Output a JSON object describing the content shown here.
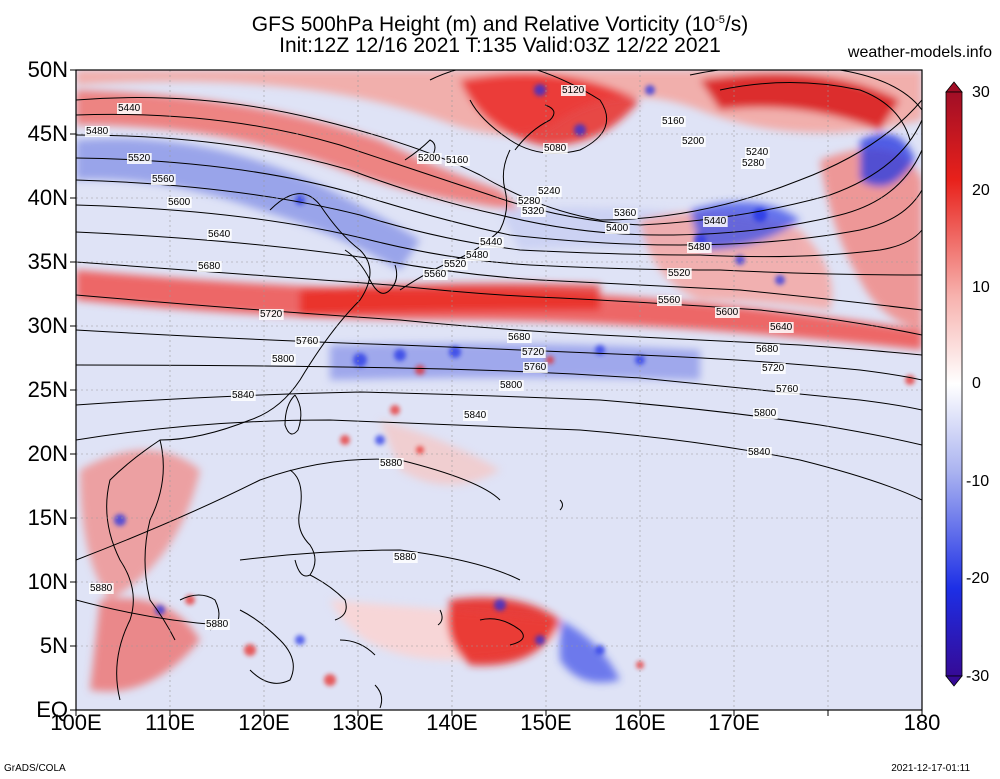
{
  "title_line1_prefix": "GFS 500hPa Height (m) and Relative Vorticity (10",
  "title_line1_exp": "-5",
  "title_line1_suffix": "/s)",
  "title_line2": "Init:12Z 12/16 2021 T:135 Valid:03Z 12/22 2021",
  "site": "weather-models.info",
  "lat_labels": [
    "50N",
    "45N",
    "40N",
    "35N",
    "30N",
    "25N",
    "20N",
    "15N",
    "10N",
    "5N",
    "EQ"
  ],
  "lon_labels": [
    "100E",
    "110E",
    "120E",
    "130E",
    "140E",
    "150E",
    "160E",
    "170E",
    "180"
  ],
  "colorbar": {
    "labels": [
      "30",
      "20",
      "10",
      "0",
      "-10",
      "-20",
      "-30"
    ],
    "colors": [
      "#b0102a",
      "#e8211b",
      "#f4a09c",
      "#ffffff",
      "#9aa6ee",
      "#1d2fe6",
      "#3a0a9c"
    ]
  },
  "contour_labels": [
    {
      "text": "5120"
    },
    {
      "text": "5160"
    },
    {
      "text": "5200"
    },
    {
      "text": "5240"
    },
    {
      "text": "5280"
    },
    {
      "text": "5320"
    },
    {
      "text": "5360"
    },
    {
      "text": "5400"
    },
    {
      "text": "5440"
    },
    {
      "text": "5480"
    },
    {
      "text": "5520"
    },
    {
      "text": "5560"
    },
    {
      "text": "5600"
    },
    {
      "text": "5640"
    },
    {
      "text": "5680"
    },
    {
      "text": "5720"
    },
    {
      "text": "5760"
    },
    {
      "text": "5800"
    },
    {
      "text": "5840"
    },
    {
      "text": "5880"
    },
    {
      "text": "5080"
    },
    {
      "text": "5200"
    },
    {
      "text": "5160"
    }
  ],
  "footer_left": "GrADS/COLA",
  "footer_right": "2021-12-17-01:11"
}
